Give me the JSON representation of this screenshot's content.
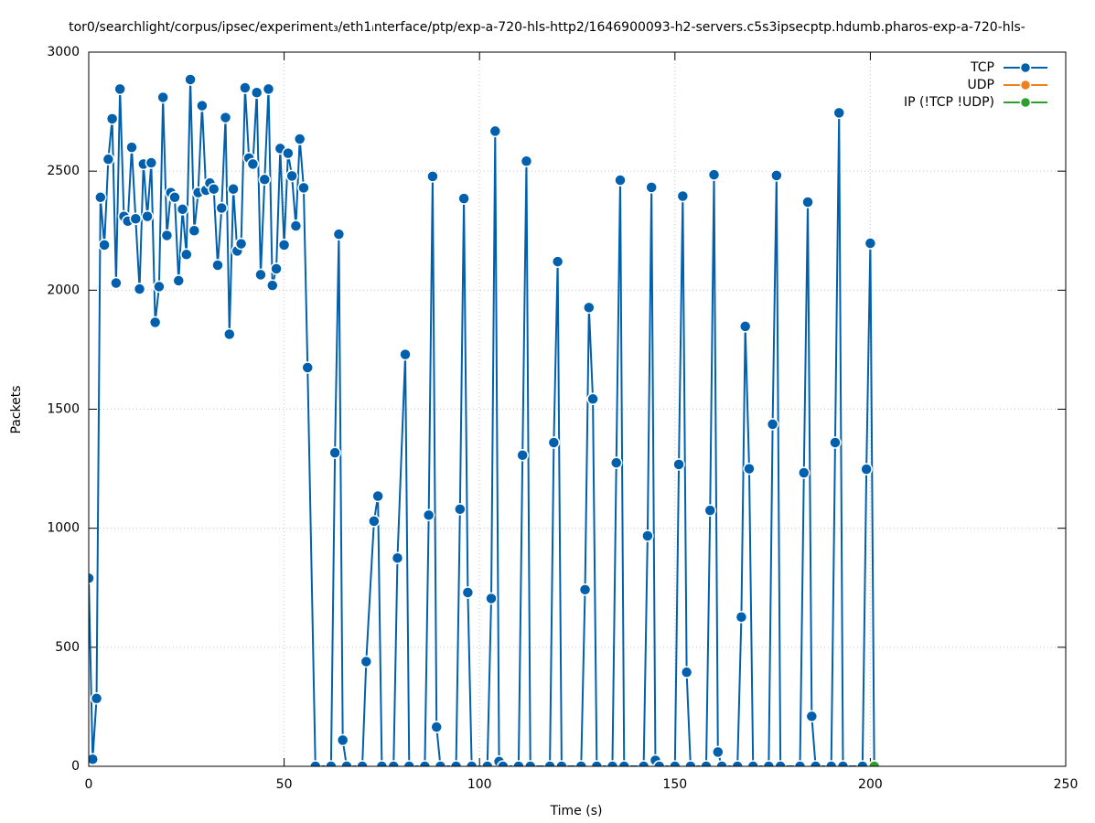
{
  "chart_data": {
    "type": "line",
    "title": "tor0/searchlight/corpus/ipsec/experiment₃/eth1ᵢnterface/ptp/exp-a-720-hls-http2/1646900093-h2-servers.c5s3ipsecptp.hdumb.pharos-exp-a-720-hls-",
    "x_label": "Time (s)",
    "y_label": "Packets",
    "xlim": [
      0,
      250
    ],
    "xticks": [
      0,
      50,
      100,
      150,
      200,
      250
    ],
    "ylim": [
      0,
      3000
    ],
    "yticks": [
      0,
      500,
      1000,
      1500,
      2000,
      2500,
      3000
    ],
    "grid": true,
    "legend": "top-right",
    "series": [
      {
        "name": "TCP",
        "color": "#0060ad",
        "x": [
          0,
          1,
          2,
          3,
          4,
          5,
          6,
          7,
          8,
          9,
          10,
          11,
          12,
          13,
          14,
          15,
          16,
          17,
          18,
          19,
          20,
          21,
          22,
          23,
          24,
          25,
          26,
          27,
          28,
          29,
          30,
          31,
          32,
          33,
          34,
          35,
          36,
          37,
          38,
          39,
          40,
          41,
          42,
          43,
          44,
          45,
          46,
          47,
          48,
          49,
          50,
          51,
          52,
          53,
          54,
          55,
          56,
          58,
          62,
          63,
          64,
          65,
          66,
          70,
          71,
          73,
          74,
          75,
          78,
          79,
          81,
          82,
          86,
          87,
          88,
          89,
          90,
          94,
          95,
          96,
          97,
          98,
          102,
          103,
          104,
          105,
          106,
          110,
          111,
          112,
          113,
          118,
          119,
          120,
          121,
          126,
          127,
          128,
          129,
          130,
          134,
          135,
          136,
          137,
          142,
          143,
          144,
          145,
          146,
          150,
          151,
          152,
          153,
          154,
          158,
          159,
          160,
          161,
          162,
          166,
          167,
          168,
          169,
          170,
          174,
          175,
          176,
          177,
          182,
          183,
          184,
          185,
          186,
          190,
          191,
          192,
          193,
          198,
          199,
          200,
          201
        ],
        "values": [
          790,
          30,
          285,
          2390,
          2190,
          2550,
          2720,
          2030,
          2845,
          2310,
          2290,
          2600,
          2300,
          2005,
          2530,
          2310,
          2535,
          1865,
          2015,
          2810,
          2230,
          2410,
          2390,
          2040,
          2340,
          2150,
          2885,
          2250,
          2410,
          2775,
          2420,
          2450,
          2425,
          2105,
          2345,
          2725,
          1815,
          2425,
          2165,
          2195,
          2850,
          2555,
          2530,
          2830,
          2065,
          2465,
          2845,
          2020,
          2090,
          2595,
          2190,
          2575,
          2480,
          2270,
          2635,
          2430,
          1675,
          0,
          0,
          1317,
          2235,
          110,
          0,
          0,
          440,
          1030,
          1135,
          0,
          0,
          875,
          1730,
          0,
          0,
          1055,
          2478,
          165,
          0,
          0,
          1080,
          2385,
          730,
          0,
          0,
          705,
          2668,
          20,
          0,
          0,
          1307,
          2542,
          0,
          0,
          1360,
          2120,
          0,
          0,
          742,
          1927,
          1543,
          0,
          0,
          1275,
          2462,
          0,
          0,
          968,
          2432,
          25,
          0,
          0,
          1268,
          2395,
          395,
          0,
          0,
          1075,
          2485,
          60,
          0,
          0,
          627,
          1848,
          1250,
          0,
          0,
          1437,
          2482,
          0,
          0,
          1233,
          2370,
          210,
          0,
          0,
          1360,
          2745,
          0,
          0,
          1248,
          2197,
          0
        ]
      },
      {
        "name": "UDP",
        "color": "#f07f1e",
        "x": [],
        "values": []
      },
      {
        "name": "IP (!TCP  !UDP)",
        "color": "#2ca02c",
        "x": [
          201
        ],
        "values": [
          0
        ]
      }
    ]
  }
}
